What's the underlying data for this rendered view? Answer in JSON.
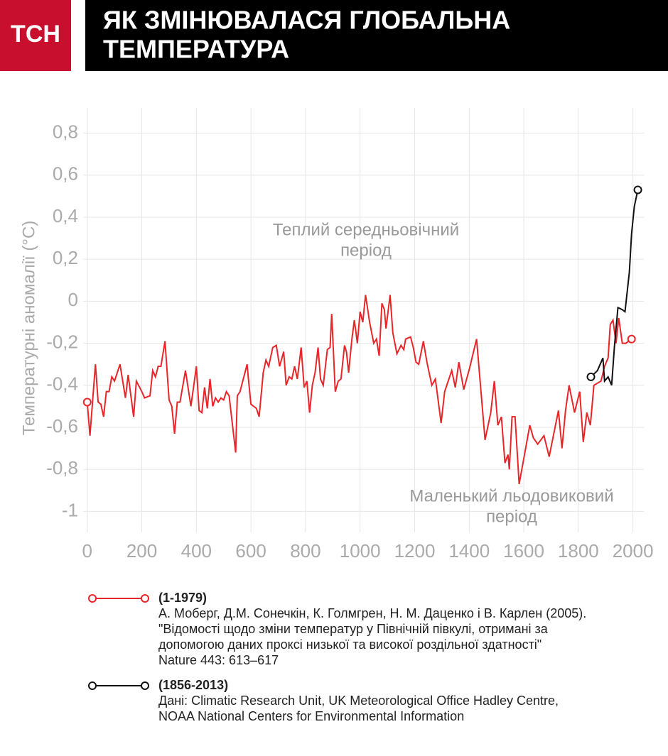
{
  "header": {
    "logo": "ТСН",
    "title": [
      "ЯК ЗМІНЮВАЛАСЯ ГЛОБАЛЬНА",
      "ТЕМПЕРАТУРА"
    ]
  },
  "chart_data": {
    "type": "line",
    "y_label": "Температурні аномалії (°C)",
    "xlim": [
      -15,
      2040
    ],
    "ylim": [
      -1.1,
      0.92
    ],
    "xticks": [
      0,
      200,
      400,
      600,
      800,
      1000,
      1200,
      1400,
      1600,
      1800,
      2000
    ],
    "yticks": [
      {
        "value": -1,
        "label": "-1"
      },
      {
        "value": -0.8,
        "label": "-0,8"
      },
      {
        "value": -0.6,
        "label": "-0,6"
      },
      {
        "value": -0.4,
        "label": "-0,4"
      },
      {
        "value": -0.2,
        "label": "-0,2"
      },
      0,
      {
        "value": 0.2,
        "label": "0,2"
      },
      {
        "value": 0.4,
        "label": "0,4"
      },
      {
        "value": 0.6,
        "label": "0,6"
      },
      {
        "value": 0.8,
        "label": "0,8"
      }
    ],
    "grid": true,
    "annotations": [
      [
        "Теплий середньовічний",
        "період"
      ],
      [
        "Маленький льодовиковий",
        "період"
      ]
    ],
    "series": [
      {
        "name": "(1-1979)",
        "color": "#e8262a",
        "source": [
          "А. Моберг, Д.М. Сонечкін, К. Голмгрен, Н. М. Даценко і В. Карлен (2005).",
          "\"Відомості щодо зміни температур у Північній півкулі,  отримані за",
          "допомогою даних проксі низької та високої роздільної здатності\"",
          "Nature 443: 613–617"
        ],
        "x": [
          0,
          10,
          20,
          30,
          40,
          50,
          60,
          70,
          80,
          90,
          100,
          120,
          140,
          150,
          170,
          180,
          200,
          210,
          230,
          240,
          250,
          260,
          270,
          285,
          300,
          310,
          320,
          330,
          340,
          360,
          380,
          400,
          410,
          420,
          430,
          440,
          450,
          460,
          470,
          480,
          490,
          500,
          510,
          520,
          544,
          550,
          560,
          586,
          590,
          600,
          610,
          620,
          630,
          645,
          655,
          665,
          680,
          693,
          705,
          720,
          729,
          740,
          750,
          760,
          770,
          784,
          795,
          805,
          815,
          825,
          835,
          846,
          855,
          865,
          880,
          890,
          896,
          909,
          920,
          930,
          943,
          950,
          958,
          970,
          979,
          990,
          1000,
          1010,
          1020,
          1035,
          1050,
          1060,
          1070,
          1080,
          1089,
          1095,
          1110,
          1120,
          1135,
          1150,
          1160,
          1167,
          1185,
          1195,
          1205,
          1215,
          1232,
          1245,
          1263,
          1276,
          1297,
          1310,
          1336,
          1349,
          1362,
          1380,
          1401,
          1427,
          1458,
          1479,
          1492,
          1505,
          1518,
          1531,
          1542,
          1547,
          1557,
          1568,
          1583,
          1604,
          1622,
          1635,
          1651,
          1674,
          1693,
          1727,
          1740,
          1753,
          1766,
          1786,
          1805,
          1818,
          1831,
          1844,
          1857,
          1883,
          1896,
          1909,
          1917,
          1927,
          1938,
          1948,
          1961,
          1974,
          1995
        ],
        "values": [
          -0.48,
          -0.64,
          -0.47,
          -0.3,
          -0.48,
          -0.49,
          -0.55,
          -0.43,
          -0.43,
          -0.36,
          -0.38,
          -0.3,
          -0.46,
          -0.35,
          -0.55,
          -0.38,
          -0.43,
          -0.46,
          -0.45,
          -0.33,
          -0.36,
          -0.31,
          -0.31,
          -0.19,
          -0.47,
          -0.5,
          -0.63,
          -0.48,
          -0.48,
          -0.33,
          -0.5,
          -0.31,
          -0.52,
          -0.53,
          -0.41,
          -0.51,
          -0.37,
          -0.5,
          -0.46,
          -0.48,
          -0.46,
          -0.47,
          -0.43,
          -0.45,
          -0.72,
          -0.45,
          -0.43,
          -0.3,
          -0.36,
          -0.49,
          -0.5,
          -0.51,
          -0.55,
          -0.34,
          -0.28,
          -0.31,
          -0.22,
          -0.21,
          -0.31,
          -0.24,
          -0.4,
          -0.36,
          -0.37,
          -0.31,
          -0.37,
          -0.22,
          -0.41,
          -0.38,
          -0.53,
          -0.4,
          -0.34,
          -0.22,
          -0.37,
          -0.4,
          -0.23,
          -0.22,
          -0.06,
          -0.43,
          -0.38,
          -0.37,
          -0.21,
          -0.24,
          -0.34,
          -0.18,
          -0.09,
          -0.2,
          -0.05,
          -0.1,
          0.03,
          -0.1,
          -0.2,
          -0.18,
          -0.26,
          -0.01,
          -0.04,
          -0.13,
          0.03,
          -0.15,
          -0.25,
          -0.21,
          -0.23,
          -0.18,
          -0.17,
          -0.22,
          -0.29,
          -0.3,
          -0.19,
          -0.29,
          -0.4,
          -0.37,
          -0.58,
          -0.43,
          -0.33,
          -0.41,
          -0.29,
          -0.42,
          -0.32,
          -0.18,
          -0.66,
          -0.53,
          -0.38,
          -0.59,
          -0.55,
          -0.77,
          -0.73,
          -0.8,
          -0.55,
          -0.55,
          -0.87,
          -0.72,
          -0.59,
          -0.65,
          -0.68,
          -0.64,
          -0.74,
          -0.52,
          -0.7,
          -0.52,
          -0.4,
          -0.53,
          -0.43,
          -0.67,
          -0.53,
          -0.59,
          -0.4,
          -0.38,
          -0.31,
          -0.27,
          -0.11,
          -0.09,
          -0.2,
          -0.08,
          -0.2,
          -0.2,
          -0.18
        ]
      },
      {
        "name": "(1856-2013)",
        "color": "#111111",
        "source": [
          "Дані: Climatic Research Unit, UK Meteorological Office Hadley Centre,",
          "NOAA National Centers for Environmental Information"
        ],
        "x": [
          1846,
          1870,
          1890,
          1896,
          1909,
          1922,
          1932,
          1945,
          1961,
          1971,
          1987,
          1995,
          2005,
          2018
        ],
        "values": [
          -0.36,
          -0.33,
          -0.27,
          -0.38,
          -0.36,
          -0.4,
          -0.22,
          -0.03,
          -0.04,
          -0.05,
          0.14,
          0.32,
          0.45,
          0.53
        ]
      }
    ]
  }
}
